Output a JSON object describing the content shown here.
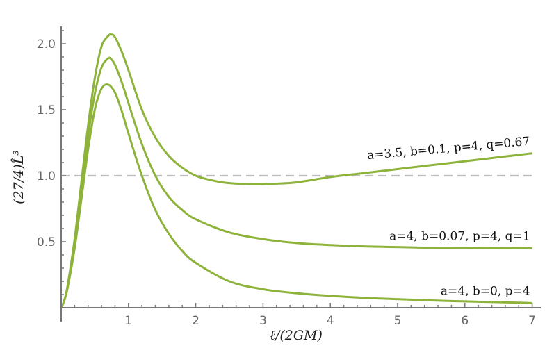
{
  "chart_data": {
    "type": "line",
    "xlabel": "ℓ/(2GM)",
    "ylabel": "(27/4)L̂³",
    "xlim": [
      0,
      7
    ],
    "ylim": [
      0,
      2.15
    ],
    "x_ticks": [
      "1",
      "2",
      "3",
      "4",
      "5",
      "6",
      "7"
    ],
    "y_ticks": [
      "0.5",
      "1.0",
      "1.5",
      "2.0"
    ],
    "grid": false,
    "reference_line": {
      "y": 1.0,
      "style": "dashed",
      "color": "#bbbbbb"
    },
    "series_color": "#8db33a",
    "series": [
      {
        "name": "a=3.5, b=0.1, p=4, q=0.67",
        "x": [
          0,
          0.05,
          0.1,
          0.2,
          0.3,
          0.4,
          0.5,
          0.6,
          0.7,
          0.75,
          0.8,
          0.9,
          1.0,
          1.2,
          1.4,
          1.6,
          1.8,
          2.0,
          2.2,
          2.4,
          2.6,
          2.8,
          3.0,
          3.2,
          3.5,
          4.0,
          4.5,
          5.0,
          5.5,
          6.0,
          6.5,
          7.0
        ],
        "y": [
          0,
          0.06,
          0.18,
          0.52,
          0.95,
          1.38,
          1.74,
          1.98,
          2.06,
          2.07,
          2.05,
          1.94,
          1.8,
          1.5,
          1.29,
          1.15,
          1.06,
          1.0,
          0.97,
          0.95,
          0.94,
          0.935,
          0.935,
          0.94,
          0.95,
          0.99,
          1.02,
          1.05,
          1.08,
          1.11,
          1.14,
          1.17
        ]
      },
      {
        "name": "a=4, b=0.07, p=4, q=1",
        "x": [
          0,
          0.05,
          0.1,
          0.2,
          0.3,
          0.4,
          0.5,
          0.6,
          0.7,
          0.75,
          0.8,
          0.9,
          1.0,
          1.2,
          1.4,
          1.6,
          1.8,
          2.0,
          2.5,
          3.0,
          3.5,
          4.0,
          4.5,
          5.0,
          5.5,
          6.0,
          6.5,
          7.0
        ],
        "y": [
          0,
          0.06,
          0.17,
          0.5,
          0.9,
          1.3,
          1.62,
          1.82,
          1.89,
          1.88,
          1.84,
          1.71,
          1.55,
          1.24,
          1.0,
          0.84,
          0.74,
          0.67,
          0.57,
          0.52,
          0.49,
          0.475,
          0.465,
          0.46,
          0.455,
          0.455,
          0.452,
          0.45
        ]
      },
      {
        "name": "a=4, b=0, p=4",
        "x": [
          0,
          0.05,
          0.1,
          0.2,
          0.3,
          0.4,
          0.5,
          0.6,
          0.7,
          0.8,
          0.9,
          1.0,
          1.2,
          1.4,
          1.6,
          1.8,
          2.0,
          2.5,
          3.0,
          3.5,
          4.0,
          4.5,
          5.0,
          5.5,
          6.0,
          6.5,
          7.0
        ],
        "y": [
          0,
          0.06,
          0.16,
          0.45,
          0.82,
          1.2,
          1.5,
          1.66,
          1.69,
          1.63,
          1.49,
          1.32,
          1.0,
          0.74,
          0.56,
          0.43,
          0.34,
          0.2,
          0.14,
          0.11,
          0.09,
          0.075,
          0.065,
          0.055,
          0.048,
          0.042,
          0.035
        ]
      }
    ],
    "annotations": [
      {
        "text": "a=3.5, b=0.1, p=4, q=0.67",
        "x": 7.0,
        "y": 1.17,
        "anchor": "end",
        "rotate": -5
      },
      {
        "text": "a=4, b=0.07, p=4, q=1",
        "x": 7.0,
        "y": 0.45,
        "anchor": "end",
        "rotate": 0
      },
      {
        "text": "a=4, b=0, p=4",
        "x": 7.0,
        "y": 0.035,
        "anchor": "end",
        "rotate": 0
      }
    ]
  }
}
